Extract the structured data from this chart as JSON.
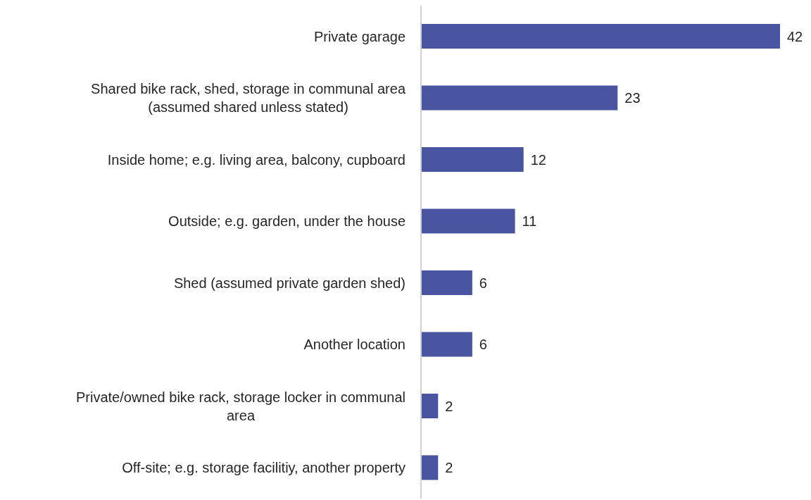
{
  "chart_data": {
    "type": "bar",
    "orientation": "horizontal",
    "categories": [
      "Private garage",
      "Shared bike rack, shed, storage in communal area (assumed shared unless stated)",
      "Inside home; e.g. living area, balcony, cupboard",
      "Outside; e.g. garden, under the house",
      "Shed (assumed private garden shed)",
      "Another location",
      "Private/owned bike rack, storage locker in communal area",
      "Off-site; e.g. storage facilitiy, another property"
    ],
    "values": [
      42,
      23,
      12,
      11,
      6,
      6,
      2,
      2
    ],
    "color": "#4a55a2",
    "data_labels": true,
    "grid": false,
    "legend": false
  }
}
